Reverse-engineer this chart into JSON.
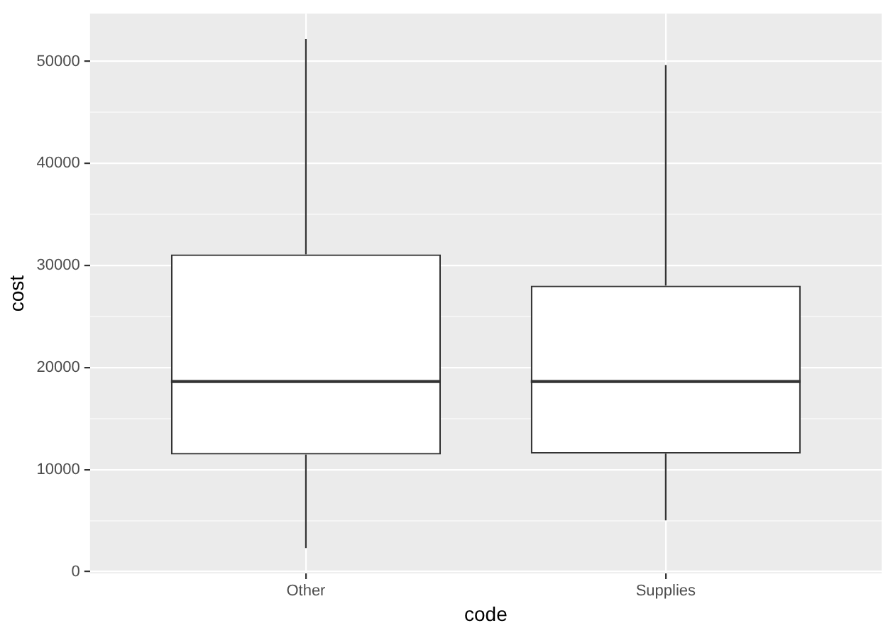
{
  "chart_data": {
    "type": "box",
    "categories": [
      "Other",
      "Supplies"
    ],
    "xlabel": "code",
    "ylabel": "cost",
    "boxes": [
      {
        "low": 2320,
        "q1": 11480,
        "median": 18630,
        "q3": 31090,
        "high": 52190
      },
      {
        "low": 5020,
        "q1": 11570,
        "median": 18630,
        "q3": 28030,
        "high": 49640
      }
    ],
    "ylim": [
      -170,
      54680
    ],
    "yticks": [
      0,
      {
        "value": 5000,
        "label": null
      },
      10000,
      {
        "value": 15000,
        "label": null
      },
      20000,
      {
        "value": 25000,
        "label": null
      },
      30000,
      {
        "value": 35000,
        "label": null
      },
      40000,
      {
        "value": 45000,
        "label": null
      },
      50000
    ],
    "grid": true
  }
}
